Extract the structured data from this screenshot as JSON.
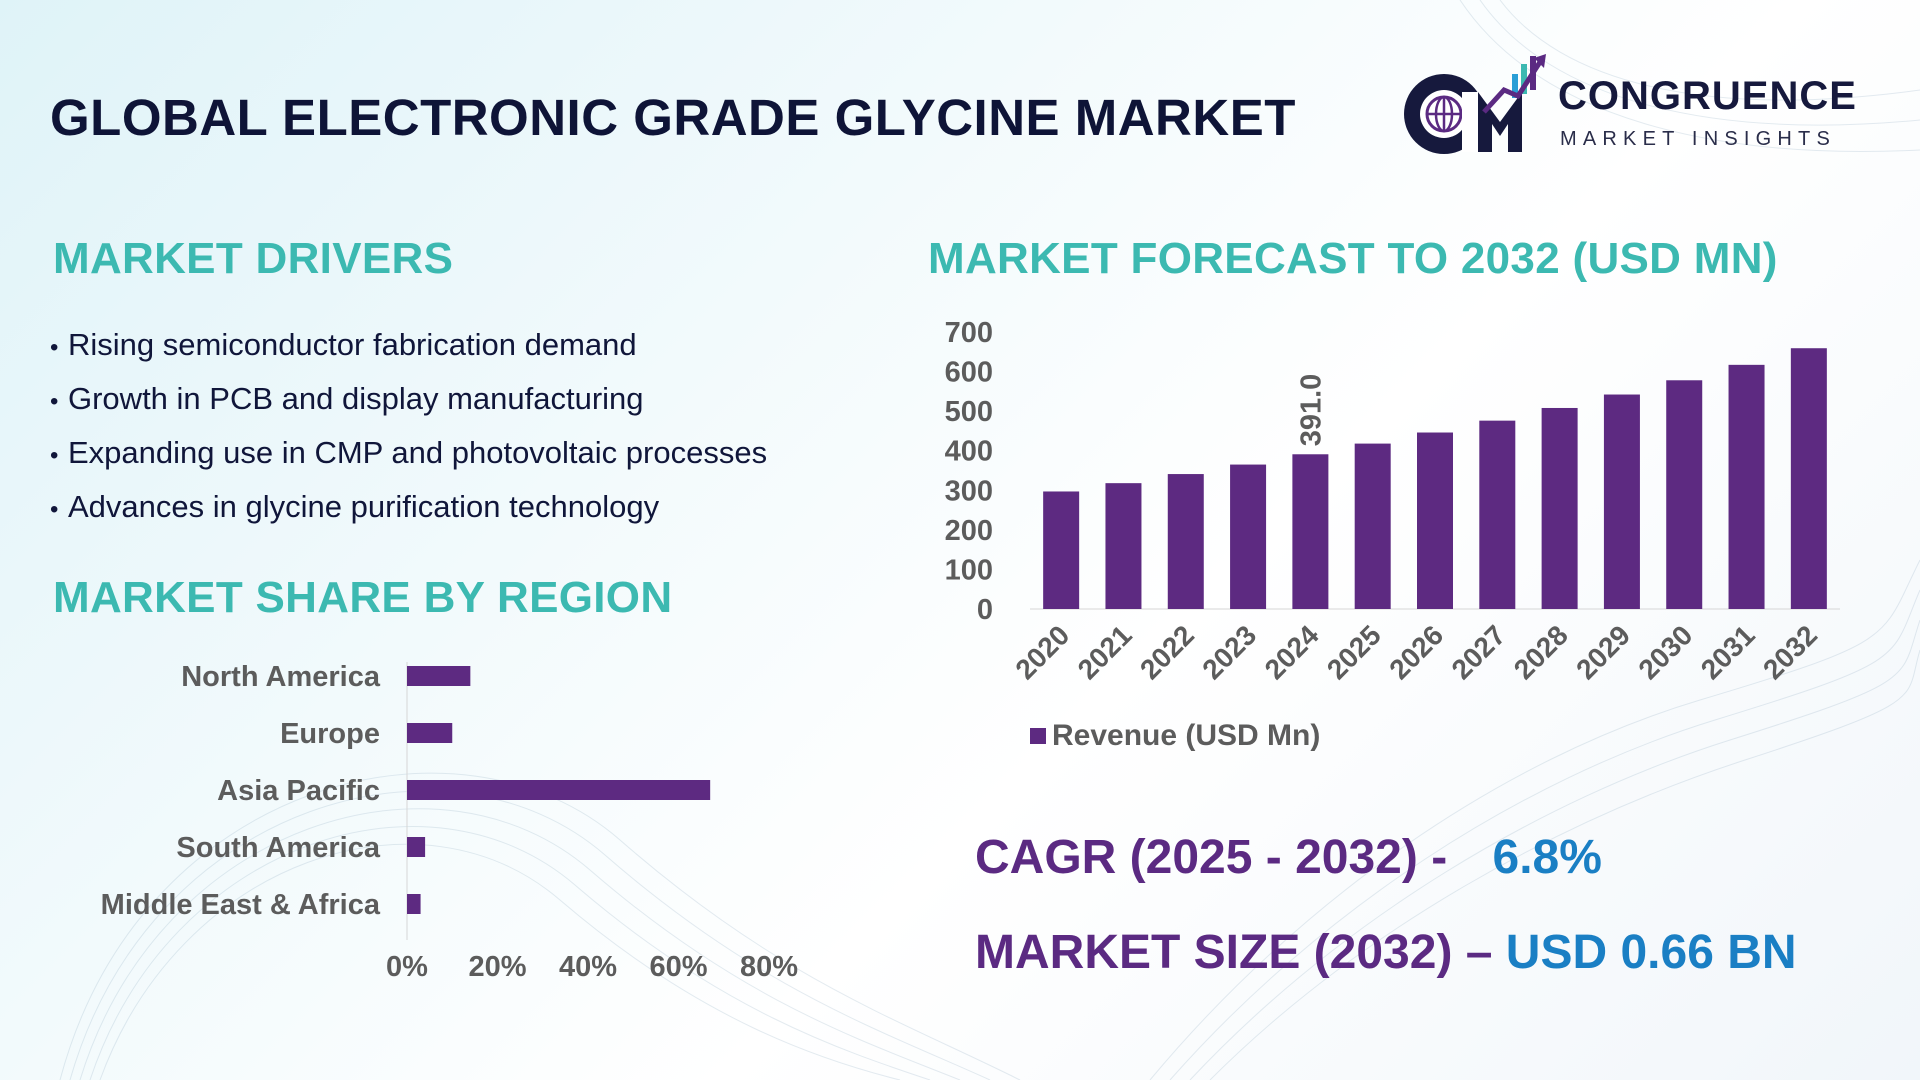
{
  "page": {
    "title": "GLOBAL ELECTRONIC GRADE GLYCINE MARKET",
    "colors": {
      "title": "#0e1437",
      "section": "#3cb9b1",
      "bar": "#5d2a81",
      "stat_label": "#5b2a82",
      "stat_value": "#1a7fc4"
    }
  },
  "logo": {
    "initials": "CM",
    "name": "CONGRUENCE",
    "subtitle": "MARKET INSIGHTS",
    "icon": "globe-bar-chart-icon"
  },
  "drivers": {
    "title": "MARKET DRIVERS",
    "bullet": "•",
    "items": [
      "Rising semiconductor fabrication demand",
      "Growth in PCB and display manufacturing",
      "Expanding use in CMP and photovoltaic processes",
      "Advances in glycine purification technology"
    ]
  },
  "region": {
    "title": "MARKET SHARE BY REGION"
  },
  "forecast": {
    "title": "MARKET FORECAST TO 2032 (USD MN)"
  },
  "stats": {
    "cagr_label": "CAGR (2025 - 2032) -",
    "cagr_value": "6.8%",
    "size_label": "MARKET SIZE (2032) –",
    "size_value": "USD 0.66 BN"
  },
  "chart_data": [
    {
      "type": "bar",
      "orientation": "horizontal",
      "categories": [
        "North America",
        "Europe",
        "Asia Pacific",
        "South America",
        "Middle East & Africa"
      ],
      "values": [
        14,
        10,
        67,
        4,
        3
      ],
      "x_ticks": [
        "0%",
        "20%",
        "40%",
        "60%",
        "80%"
      ],
      "xlim": [
        0,
        80
      ],
      "grid": false,
      "color": "#5d2a81"
    },
    {
      "type": "bar",
      "categories": [
        "2020",
        "2021",
        "2022",
        "2023",
        "2024",
        "2025",
        "2026",
        "2027",
        "2028",
        "2029",
        "2030",
        "2031",
        "2032"
      ],
      "series": [
        {
          "name": "Revenue (USD Mn)",
          "values": [
            297,
            318,
            341,
            365,
            391,
            418,
            446,
            476,
            508,
            542,
            578,
            617,
            659
          ]
        }
      ],
      "data_labels": [
        {
          "category": "2024",
          "text": "391.0"
        }
      ],
      "y_ticks": [
        "0",
        "100",
        "200",
        "300",
        "400",
        "500",
        "600",
        "700"
      ],
      "ylim": [
        0,
        700
      ],
      "legend": "bottom",
      "grid": false,
      "color": "#5d2a81"
    }
  ]
}
